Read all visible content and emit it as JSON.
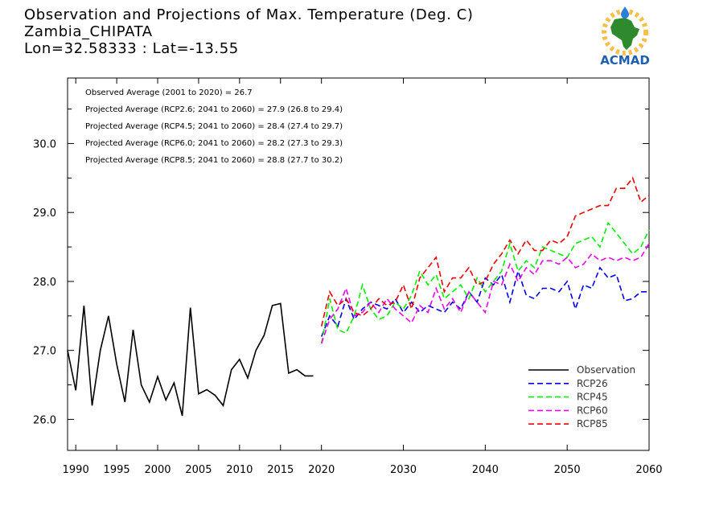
{
  "title": {
    "line1": "Observation and Projections of Max. Temperature (Deg. C)",
    "line2": "Zambia_CHIPATA",
    "line3": "Lon=32.58333 : Lat=-13.55"
  },
  "logo": {
    "text": "ACMAD",
    "icon": "africa-sun-logo-icon"
  },
  "stats": [
    "Observed Average (2001 to 2020) = 26.7",
    "Projected Average (RCP2.6; 2041 to 2060) = 27.9 (26.8 to 29.4)",
    "Projected Average (RCP4.5; 2041 to 2060) = 28.4 (27.4 to 29.7)",
    "Projected Average (RCP6.0; 2041 to 2060) = 28.2 (27.3 to 29.3)",
    "Projected Average (RCP8.5; 2041 to 2060) = 28.8 (27.7 to 30.2)"
  ],
  "chart_data": {
    "type": "line",
    "title": "Observation and Projections of Max. Temperature (Deg. C)",
    "xlim": [
      1989,
      2060
    ],
    "ylim": [
      25.55,
      30.95
    ],
    "x_ticks": [
      {
        "value": 1990,
        "label": "1990"
      },
      {
        "value": 1995,
        "label": "1995"
      },
      {
        "value": 2000,
        "label": "2000"
      },
      {
        "value": 2005,
        "label": "2005"
      },
      {
        "value": 2010,
        "label": "2010"
      },
      {
        "value": 2015,
        "label": "2015"
      },
      {
        "value": 2020,
        "label": "2020"
      },
      {
        "value": 2030,
        "label": "2030"
      },
      {
        "value": 2040,
        "label": "2040"
      },
      {
        "value": 2050,
        "label": "2050"
      },
      {
        "value": 2060,
        "label": "2060"
      }
    ],
    "y_ticks": [
      {
        "value": 26.0,
        "label": "26.0"
      },
      {
        "value": 27.0,
        "label": "27.0"
      },
      {
        "value": 28.0,
        "label": "28.0"
      },
      {
        "value": 29.0,
        "label": "29.0"
      },
      {
        "value": 30.0,
        "label": "30.0"
      }
    ],
    "grid": false,
    "legend_position": "bottom-right",
    "series": [
      {
        "name": "Observation",
        "color": "#000000",
        "dashed": false,
        "x": [
          1989,
          1990,
          1991,
          1992,
          1993,
          1994,
          1995,
          1996,
          1997,
          1998,
          1999,
          2000,
          2001,
          2002,
          2003,
          2004,
          2005,
          2006,
          2007,
          2008,
          2009,
          2010,
          2011,
          2012,
          2013,
          2014,
          2015,
          2016,
          2017,
          2018,
          2019
        ],
        "y": [
          27.0,
          26.42,
          27.65,
          26.2,
          27.0,
          27.5,
          26.8,
          26.25,
          27.3,
          26.5,
          26.25,
          26.62,
          26.28,
          26.53,
          26.05,
          27.62,
          26.37,
          26.43,
          26.35,
          26.2,
          26.72,
          26.87,
          26.6,
          27.0,
          27.22,
          27.65,
          27.68,
          26.67,
          26.72,
          26.63,
          26.63
        ]
      },
      {
        "name": "RCP26",
        "color": "#0000ee",
        "dashed": true,
        "x": [
          2020,
          2021,
          2022,
          2023,
          2024,
          2025,
          2026,
          2027,
          2028,
          2029,
          2030,
          2031,
          2032,
          2033,
          2034,
          2035,
          2036,
          2037,
          2038,
          2039,
          2040,
          2041,
          2042,
          2043,
          2044,
          2045,
          2046,
          2047,
          2048,
          2049,
          2050,
          2051,
          2052,
          2053,
          2054,
          2055,
          2056,
          2057,
          2058,
          2059,
          2060
        ],
        "y": [
          27.2,
          27.5,
          27.35,
          27.75,
          27.45,
          27.6,
          27.7,
          27.65,
          27.6,
          27.75,
          27.55,
          27.7,
          27.55,
          27.65,
          27.6,
          27.55,
          27.7,
          27.6,
          27.85,
          27.7,
          28.05,
          27.95,
          28.1,
          27.7,
          28.15,
          27.8,
          27.75,
          27.9,
          27.9,
          27.85,
          28.0,
          27.6,
          27.95,
          27.9,
          28.2,
          28.05,
          28.1,
          27.72,
          27.75,
          27.85,
          27.85
        ]
      },
      {
        "name": "RCP45",
        "color": "#00ee00",
        "dashed": true,
        "x": [
          2020,
          2021,
          2022,
          2023,
          2024,
          2025,
          2026,
          2027,
          2028,
          2029,
          2030,
          2031,
          2032,
          2033,
          2034,
          2035,
          2036,
          2037,
          2038,
          2039,
          2040,
          2041,
          2042,
          2043,
          2044,
          2045,
          2046,
          2047,
          2048,
          2049,
          2050,
          2051,
          2052,
          2053,
          2054,
          2055,
          2056,
          2057,
          2058,
          2059,
          2060
        ],
        "y": [
          27.1,
          27.75,
          27.3,
          27.25,
          27.5,
          27.95,
          27.6,
          27.45,
          27.5,
          27.7,
          27.6,
          27.8,
          28.15,
          27.95,
          28.1,
          27.75,
          27.85,
          27.95,
          27.75,
          28.05,
          27.85,
          28.0,
          28.15,
          28.55,
          28.15,
          28.3,
          28.2,
          28.5,
          28.45,
          28.4,
          28.35,
          28.55,
          28.6,
          28.65,
          28.5,
          28.85,
          28.7,
          28.55,
          28.4,
          28.5,
          28.75
        ]
      },
      {
        "name": "RCP60",
        "color": "#ee00ee",
        "dashed": true,
        "x": [
          2020,
          2021,
          2022,
          2023,
          2024,
          2025,
          2026,
          2027,
          2028,
          2029,
          2030,
          2031,
          2032,
          2033,
          2034,
          2035,
          2036,
          2037,
          2038,
          2039,
          2040,
          2041,
          2042,
          2043,
          2044,
          2045,
          2046,
          2047,
          2048,
          2049,
          2050,
          2051,
          2052,
          2053,
          2054,
          2055,
          2056,
          2057,
          2058,
          2059,
          2060
        ],
        "y": [
          27.1,
          27.45,
          27.6,
          27.9,
          27.5,
          27.55,
          27.7,
          27.55,
          27.75,
          27.6,
          27.5,
          27.4,
          27.65,
          27.55,
          27.9,
          27.6,
          27.75,
          27.55,
          27.85,
          27.7,
          27.55,
          28.0,
          27.95,
          28.25,
          28.0,
          28.2,
          28.1,
          28.3,
          28.3,
          28.25,
          28.35,
          28.2,
          28.25,
          28.4,
          28.3,
          28.35,
          28.3,
          28.35,
          28.3,
          28.35,
          28.55
        ]
      },
      {
        "name": "RCP85",
        "color": "#ee0000",
        "dashed": true,
        "x": [
          2020,
          2021,
          2022,
          2023,
          2024,
          2025,
          2026,
          2027,
          2028,
          2029,
          2030,
          2031,
          2032,
          2033,
          2034,
          2035,
          2036,
          2037,
          2038,
          2039,
          2040,
          2041,
          2042,
          2043,
          2044,
          2045,
          2046,
          2047,
          2048,
          2049,
          2050,
          2051,
          2052,
          2053,
          2054,
          2055,
          2056,
          2057,
          2058,
          2059,
          2060
        ],
        "y": [
          27.35,
          27.85,
          27.65,
          27.75,
          27.55,
          27.5,
          27.6,
          27.75,
          27.65,
          27.7,
          27.95,
          27.6,
          28.05,
          28.2,
          28.35,
          27.85,
          28.05,
          28.05,
          28.2,
          27.95,
          28.0,
          28.25,
          28.4,
          28.6,
          28.4,
          28.6,
          28.45,
          28.45,
          28.6,
          28.55,
          28.65,
          28.95,
          29.0,
          29.05,
          29.1,
          29.1,
          29.35,
          29.35,
          29.5,
          29.15,
          29.25
        ]
      }
    ]
  }
}
